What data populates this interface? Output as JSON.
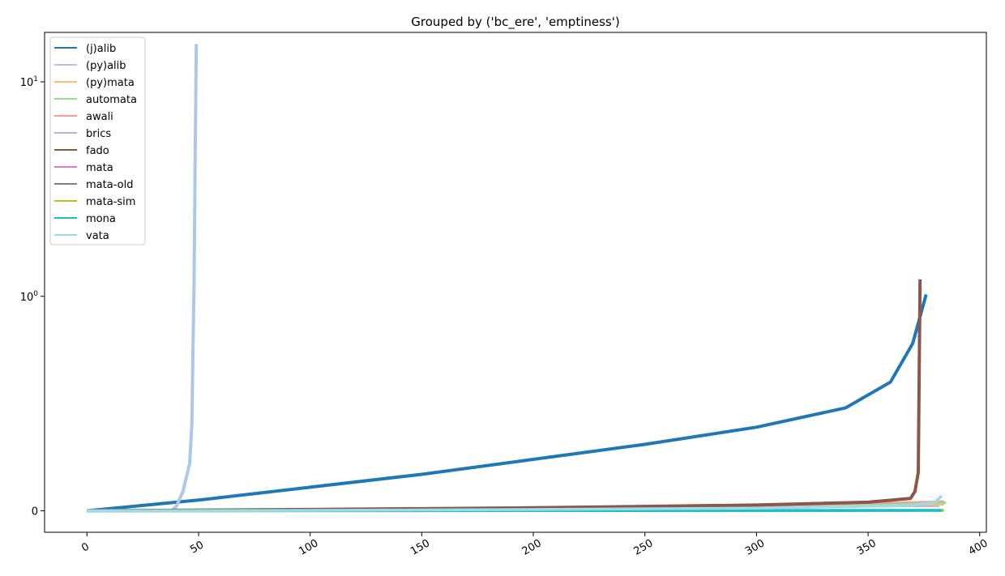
{
  "chart_data": {
    "type": "line",
    "title": "Grouped by ('bc_ere', 'emptiness')",
    "xlabel": "",
    "ylabel": "",
    "yscale": "symlog",
    "xlim": [
      -19,
      403
    ],
    "ylim": [
      -0.1,
      17
    ],
    "legend_placement": "top-left",
    "grid": false,
    "x_ticks": [
      0,
      50,
      100,
      150,
      200,
      250,
      300,
      350,
      400
    ],
    "x_tick_labels": [
      "0",
      "50",
      "100",
      "150",
      "200",
      "250",
      "300",
      "350",
      "400"
    ],
    "y_ticks": [
      {
        "value": 0,
        "base": "0",
        "exp": ""
      },
      {
        "value": 1,
        "base": "10",
        "exp": "0"
      },
      {
        "value": 10,
        "base": "10",
        "exp": "1"
      }
    ],
    "series": [
      {
        "name": "(j)alib",
        "color": "#1f77b4",
        "width": 4,
        "points": [
          [
            0,
            0
          ],
          [
            50,
            0.05
          ],
          [
            100,
            0.11
          ],
          [
            150,
            0.17
          ],
          [
            200,
            0.24
          ],
          [
            250,
            0.31
          ],
          [
            300,
            0.39
          ],
          [
            340,
            0.48
          ],
          [
            360,
            0.6
          ],
          [
            370,
            0.78
          ],
          [
            376,
            1.02
          ]
        ]
      },
      {
        "name": "(py)alib",
        "color": "#aec7e8",
        "width": 4,
        "points": [
          [
            0,
            0
          ],
          [
            38,
            0.002
          ],
          [
            40,
            0.02
          ],
          [
            43,
            0.09
          ],
          [
            46,
            0.22
          ],
          [
            47,
            0.4
          ],
          [
            48,
            1.2
          ],
          [
            48.5,
            5
          ],
          [
            49,
            15
          ]
        ]
      },
      {
        "name": "(py)mata",
        "color": "#ffbb78",
        "width": 2,
        "points": [
          [
            0,
            0
          ],
          [
            100,
            0.005
          ],
          [
            200,
            0.01
          ],
          [
            300,
            0.02
          ],
          [
            384,
            0.028
          ]
        ]
      },
      {
        "name": "automata",
        "color": "#98df8a",
        "width": 3.5,
        "points": [
          [
            0,
            0
          ],
          [
            100,
            0.006
          ],
          [
            200,
            0.015
          ],
          [
            300,
            0.025
          ],
          [
            385,
            0.038
          ]
        ]
      },
      {
        "name": "awali",
        "color": "#ff9896",
        "width": 2,
        "points": [
          [
            0,
            0
          ],
          [
            100,
            0.004
          ],
          [
            200,
            0.01
          ],
          [
            300,
            0.02
          ],
          [
            384,
            0.045
          ]
        ]
      },
      {
        "name": "brics",
        "color": "#c5b0d5",
        "width": 2,
        "points": [
          [
            0,
            0
          ],
          [
            100,
            0.003
          ],
          [
            200,
            0.008
          ],
          [
            300,
            0.015
          ],
          [
            382,
            0.022
          ]
        ]
      },
      {
        "name": "fado",
        "color": "#8c564b",
        "width": 4,
        "points": [
          [
            0,
            0
          ],
          [
            100,
            0.006
          ],
          [
            200,
            0.014
          ],
          [
            300,
            0.027
          ],
          [
            350,
            0.04
          ],
          [
            369,
            0.058
          ],
          [
            371,
            0.09
          ],
          [
            372.5,
            0.18
          ],
          [
            373.3,
            1.2
          ]
        ]
      },
      {
        "name": "mata",
        "color": "#e377c2",
        "width": 2,
        "points": [
          [
            0,
            0
          ],
          [
            200,
            0.0005
          ],
          [
            383,
            0.001
          ]
        ]
      },
      {
        "name": "mata-old",
        "color": "#7f7f7f",
        "width": 2,
        "points": [
          [
            0,
            0
          ],
          [
            200,
            0.001
          ],
          [
            380,
            0.002
          ]
        ]
      },
      {
        "name": "mata-sim",
        "color": "#bcbd22",
        "width": 3.5,
        "points": [
          [
            0,
            0
          ],
          [
            200,
            0.001
          ],
          [
            384,
            0.002
          ]
        ]
      },
      {
        "name": "mona",
        "color": "#17becf",
        "width": 3.5,
        "points": [
          [
            0,
            0
          ],
          [
            200,
            0.001
          ],
          [
            383,
            0.002
          ]
        ]
      },
      {
        "name": "vata",
        "color": "#9edae5",
        "width": 3.5,
        "points": [
          [
            0,
            0
          ],
          [
            100,
            0.002
          ],
          [
            200,
            0.006
          ],
          [
            300,
            0.012
          ],
          [
            370,
            0.025
          ],
          [
            380,
            0.04
          ],
          [
            383,
            0.07
          ]
        ]
      }
    ]
  }
}
